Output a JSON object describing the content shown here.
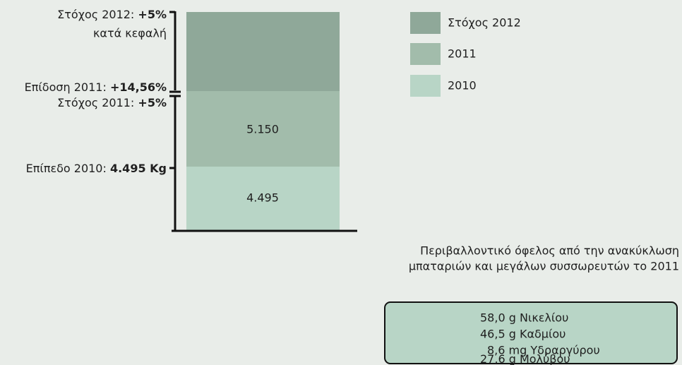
{
  "annotations": [
    {
      "label": "Στόχος 2012:",
      "value": "+5%"
    },
    {
      "label": "κατά κεφαλή"
    },
    {
      "label": "Επίδοση 2011:",
      "value": "+14,56%"
    },
    {
      "label": "Στόχος 2011:",
      "value": "+5%"
    },
    {
      "label": "Επίπεδο 2010:",
      "value": "4.495 Kg"
    }
  ],
  "segments": [
    "5.150",
    "4.495"
  ],
  "legend": [
    "Στόχος 2012",
    "2011",
    "2010"
  ],
  "box": {
    "title": [
      "Περιβαλλοντικό όφελος από την ανακύκλωση",
      "μπαταριών και μεγάλων συσσωρευτών το 2011"
    ],
    "lines": [
      "58,0 g Νικελίου",
      "46,5 g Καδμίου",
      "8,6 mg Υδραργύρου",
      "27,6 g Μολύβου"
    ]
  }
}
